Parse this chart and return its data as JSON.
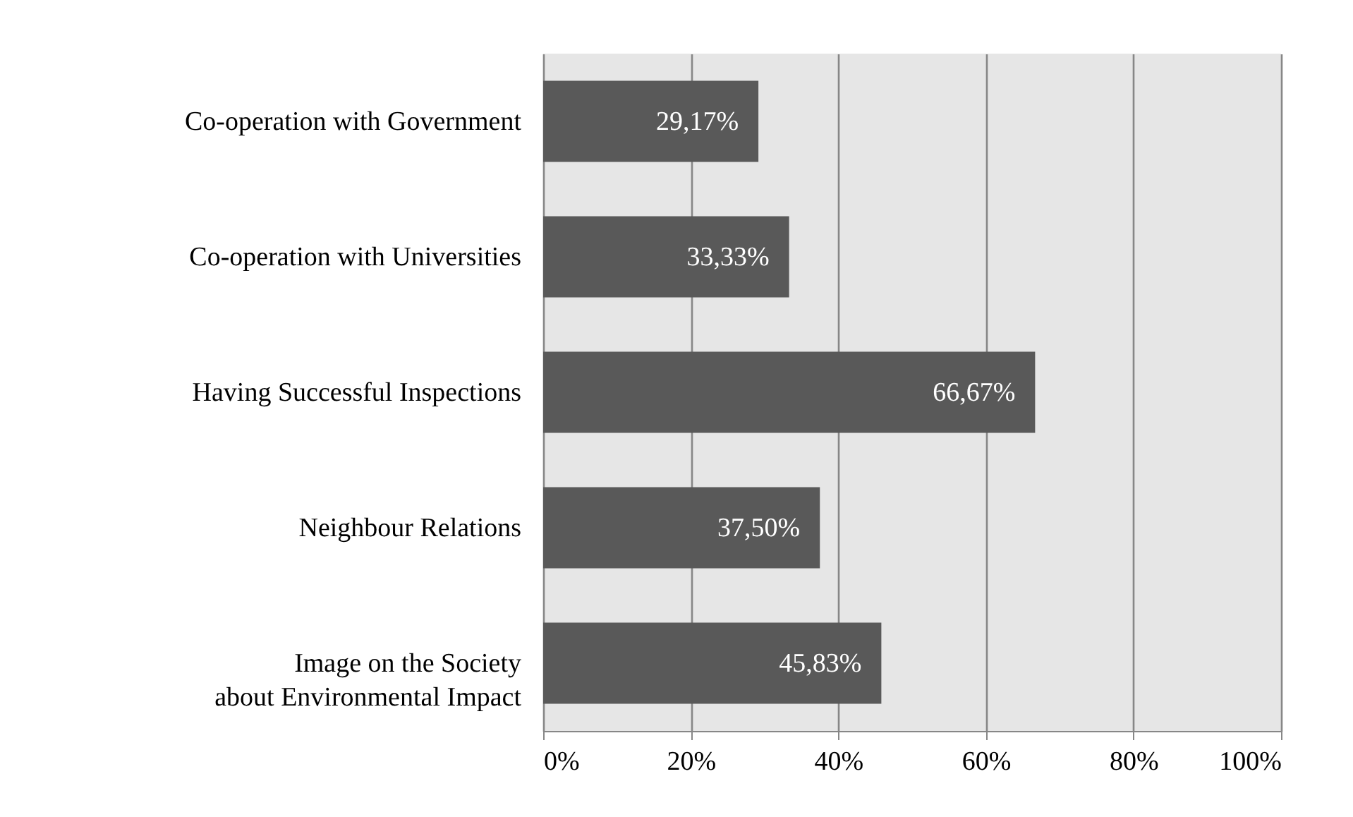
{
  "chart_data": {
    "type": "bar",
    "orientation": "horizontal",
    "categories": [
      "Co-operation with Government",
      "Co-operation with Universities",
      "Having Successful Inspections",
      "Neighbour Relations",
      "Image on the Society about Environmental Impact"
    ],
    "values": [
      29.17,
      33.33,
      66.67,
      37.5,
      45.83
    ],
    "value_labels": [
      "29,17%",
      "33,33%",
      "66,67%",
      "37,50%",
      "45,83%"
    ],
    "color": "#595959",
    "xlim": [
      0,
      100
    ],
    "xticks": [
      {
        "value": 0,
        "label": "0%"
      },
      {
        "value": 20,
        "label": "20%"
      },
      {
        "value": 40,
        "label": "40%"
      },
      {
        "value": 60,
        "label": "60%"
      },
      {
        "value": 80,
        "label": "80%"
      },
      {
        "value": 100,
        "label": "100%"
      }
    ],
    "grid": "x"
  }
}
